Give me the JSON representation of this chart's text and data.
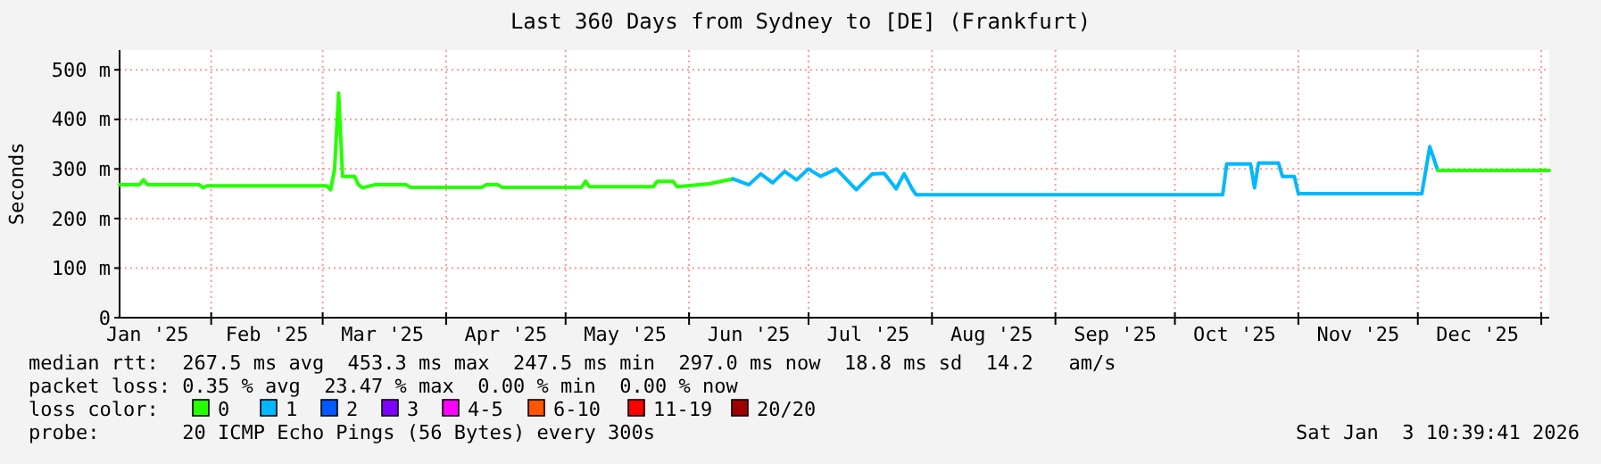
{
  "chart_data": {
    "type": "line",
    "title": "Last 360 Days from Sydney to [DE] (Frankfurt)",
    "ylabel": "Seconds",
    "xlim": [
      "2025-01-09",
      "2026-01-03"
    ],
    "xticks": [
      {
        "value": "2025-01-16",
        "label": "Jan '25"
      },
      {
        "value": "2025-02-01",
        "label": null
      },
      {
        "value": "2025-02-15",
        "label": "Feb '25"
      },
      {
        "value": "2025-03-01",
        "label": null
      },
      {
        "value": "2025-03-16",
        "label": "Mar '25"
      },
      {
        "value": "2025-04-01",
        "label": null
      },
      {
        "value": "2025-04-16",
        "label": "Apr '25"
      },
      {
        "value": "2025-05-01",
        "label": null
      },
      {
        "value": "2025-05-16",
        "label": "May '25"
      },
      {
        "value": "2025-06-01",
        "label": null
      },
      {
        "value": "2025-06-16",
        "label": "Jun '25"
      },
      {
        "value": "2025-07-01",
        "label": null
      },
      {
        "value": "2025-07-16",
        "label": "Jul '25"
      },
      {
        "value": "2025-08-01",
        "label": null
      },
      {
        "value": "2025-08-16",
        "label": "Aug '25"
      },
      {
        "value": "2025-09-01",
        "label": null
      },
      {
        "value": "2025-09-16",
        "label": "Sep '25"
      },
      {
        "value": "2025-10-01",
        "label": null
      },
      {
        "value": "2025-10-16",
        "label": "Oct '25"
      },
      {
        "value": "2025-11-01",
        "label": null
      },
      {
        "value": "2025-11-16",
        "label": "Nov '25"
      },
      {
        "value": "2025-12-01",
        "label": null
      },
      {
        "value": "2025-12-16",
        "label": "Dec '25"
      },
      {
        "value": "2026-01-01",
        "label": null
      }
    ],
    "ylim": [
      0,
      540
    ],
    "yticks": [
      0,
      {
        "value": 100,
        "label": "100 m"
      },
      {
        "value": 200,
        "label": "200 m"
      },
      {
        "value": 300,
        "label": "300 m"
      },
      {
        "value": 400,
        "label": "400 m"
      },
      {
        "value": 500,
        "label": "500 m"
      }
    ],
    "grid": true,
    "legend": "bottom",
    "legend_title": "loss color:",
    "line_style": "solid",
    "marker": "none",
    "series": [
      {
        "name": "0",
        "color": "#26ff00",
        "x": [
          "2025-01-09",
          "2025-01-14",
          "2025-01-15",
          "2025-01-16",
          "2025-01-29",
          "2025-01-30",
          "2025-01-31",
          "2025-03-02",
          "2025-03-03",
          "2025-03-04",
          "2025-03-05",
          "2025-03-06",
          "2025-03-09",
          "2025-03-10",
          "2025-03-11",
          "2025-03-14",
          "2025-03-22",
          "2025-03-23",
          "2025-04-10",
          "2025-04-11",
          "2025-04-14",
          "2025-04-15",
          "2025-05-05",
          "2025-05-06",
          "2025-05-07",
          "2025-05-23",
          "2025-05-24",
          "2025-05-28",
          "2025-05-29",
          "2025-06-06",
          "2025-06-12"
        ],
        "values": [
          268,
          268,
          278,
          268,
          268,
          262,
          266,
          266,
          258,
          300,
          453,
          285,
          285,
          268,
          262,
          268,
          268,
          263,
          263,
          268,
          268,
          263,
          263,
          275,
          264,
          264,
          275,
          275,
          264,
          270,
          280
        ]
      },
      {
        "name": "1",
        "color": "#00b8ff",
        "x": [
          "2025-06-12",
          "2025-06-16",
          "2025-06-19",
          "2025-06-22",
          "2025-06-25",
          "2025-06-28",
          "2025-07-01",
          "2025-07-04",
          "2025-07-08",
          "2025-07-13",
          "2025-07-17",
          "2025-07-20",
          "2025-07-23",
          "2025-07-25",
          "2025-07-27",
          "2025-07-28",
          "2025-10-13",
          "2025-10-14",
          "2025-10-20",
          "2025-10-21",
          "2025-10-22",
          "2025-10-27",
          "2025-10-28",
          "2025-10-31",
          "2025-11-01",
          "2025-12-02",
          "2025-12-04",
          "2025-12-06"
        ],
        "values": [
          280,
          268,
          290,
          272,
          295,
          278,
          300,
          285,
          300,
          258,
          290,
          291,
          260,
          290,
          260,
          248,
          248,
          310,
          310,
          262,
          312,
          312,
          285,
          285,
          250,
          250,
          345,
          297
        ]
      },
      {
        "color": "#26ff00",
        "x": [
          "2025-12-06",
          "2025-12-20",
          "2026-01-03"
        ],
        "values": [
          297,
          297,
          297
        ]
      },
      {
        "name": "2",
        "color": "#0059ff"
      },
      {
        "name": "3",
        "color": "#7e00ff"
      },
      {
        "name": "4-5",
        "color": "#ff00ff"
      },
      {
        "name": "6-10",
        "color": "#ff5500"
      },
      {
        "name": "11-19",
        "color": "#ff0000"
      },
      {
        "name": "20/20",
        "color": "#a10000"
      }
    ],
    "annotations": [
      "median rtt:  267.5 ms avg  453.3 ms max  247.5 ms min  297.0 ms now  18.8 ms sd  14.2   am/s",
      "packet loss: 0.35 % avg  23.47 % max  0.00 % min  0.00 % now",
      "probe:       20 ICMP Echo Pings (56 Bytes) every 300s",
      "Sat Jan  3 10:39:41 2026"
    ]
  }
}
